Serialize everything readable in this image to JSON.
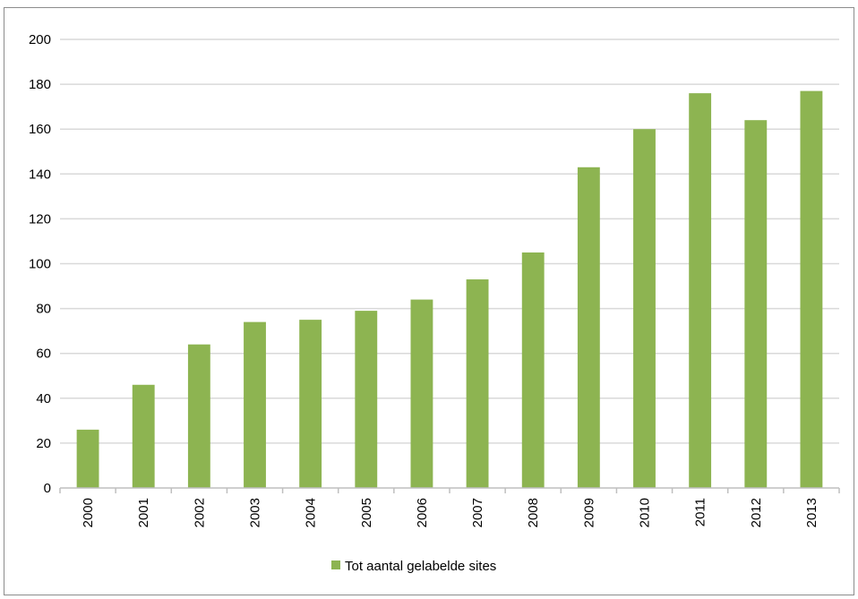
{
  "chart_data": {
    "type": "bar",
    "categories": [
      "2000",
      "2001",
      "2002",
      "2003",
      "2004",
      "2005",
      "2006",
      "2007",
      "2008",
      "2009",
      "2010",
      "2011",
      "2012",
      "2013"
    ],
    "series": [
      {
        "name": "Tot aantal gelabelde sites",
        "values": [
          26,
          46,
          64,
          74,
          75,
          79,
          84,
          93,
          105,
          143,
          160,
          176,
          164,
          177
        ],
        "color": "#8db451"
      }
    ],
    "ylim": [
      0,
      200
    ],
    "yticks": [
      0,
      20,
      40,
      60,
      80,
      100,
      120,
      140,
      160,
      180,
      200
    ],
    "grid": true,
    "legend": "bottom",
    "title": "",
    "xlabel": "",
    "ylabel": ""
  }
}
